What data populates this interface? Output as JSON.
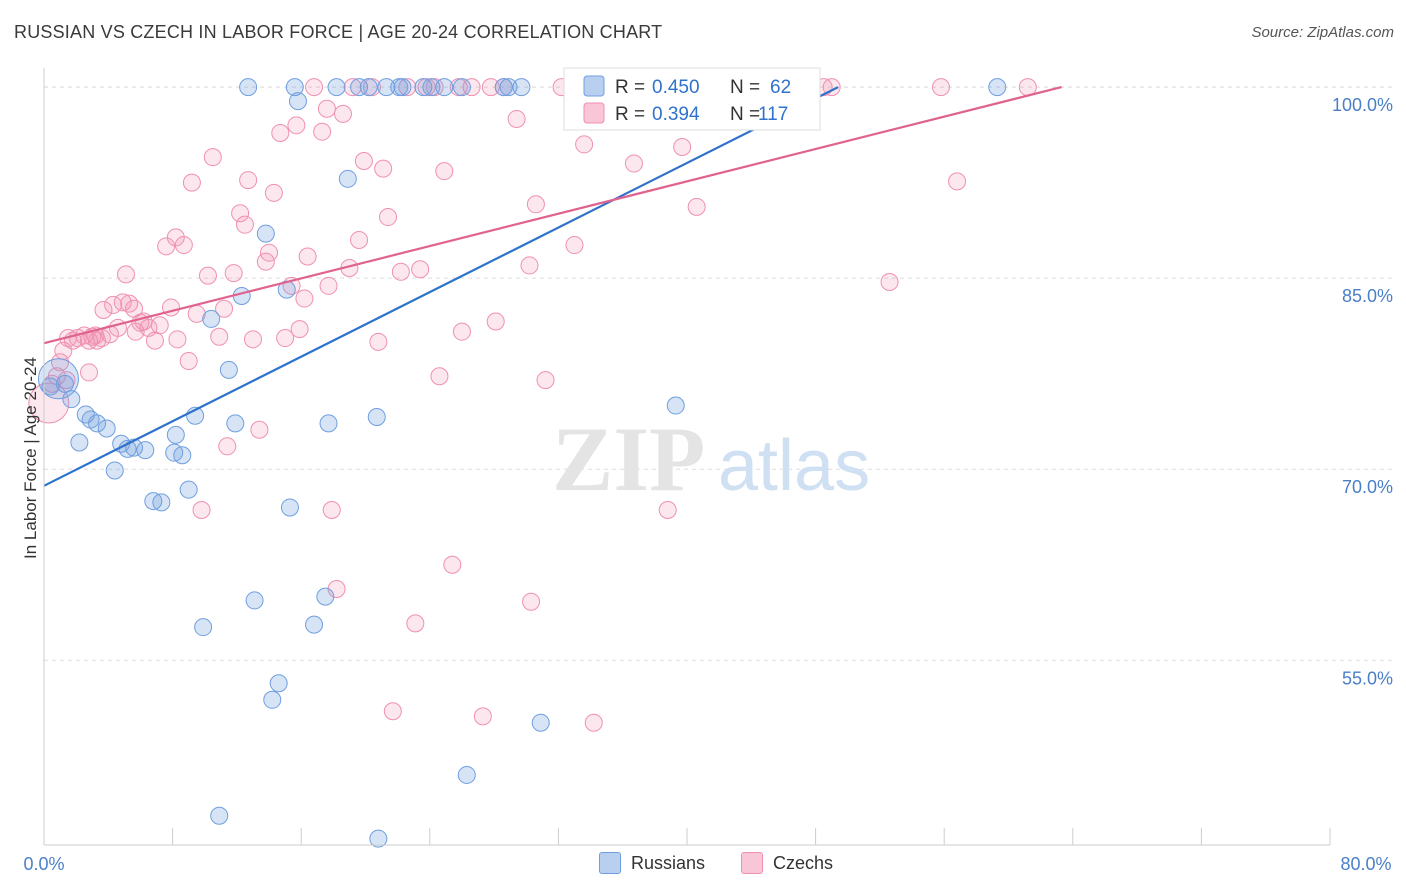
{
  "title": "RUSSIAN VS CZECH IN LABOR FORCE | AGE 20-24 CORRELATION CHART",
  "source": "Source: ZipAtlas.com",
  "watermark": {
    "zip": "ZIP",
    "atlas": "atlas"
  },
  "colors": {
    "russians": "#6f9fe0",
    "russians_line": "#2f72cc",
    "czechs": "#f090b0",
    "czechs_line": "#e0628f",
    "axis_label": "#4a7fc8",
    "grid": "#dddddd"
  },
  "legend_top": {
    "russians": {
      "r_label": "R =",
      "r_value": "0.450",
      "n_label": "N =",
      "n_value": "62"
    },
    "czechs": {
      "r_label": "R =",
      "r_value": "0.394",
      "n_label": "N =",
      "n_value": "117"
    }
  },
  "chart_data": {
    "type": "scatter",
    "title": "RUSSIAN VS CZECH IN LABOR FORCE | AGE 20-24 CORRELATION CHART",
    "xlabel": "",
    "ylabel": "In Labor Force | Age 20-24",
    "xlim": [
      0,
      80
    ],
    "ylim": [
      40.5,
      101.5
    ],
    "x_tick_labels": [
      "0.0%",
      "80.0%"
    ],
    "y_ticks": [
      55,
      70,
      85,
      100
    ],
    "y_tick_labels": [
      "55.0%",
      "70.0%",
      "85.0%",
      "100.0%"
    ],
    "grid": true,
    "legend": [
      "Russians",
      "Czechs"
    ],
    "series": [
      {
        "name": "Russians",
        "r": 0.45,
        "n": 62,
        "trend": [
          [
            0,
            68.7
          ],
          [
            49.4,
            100.0
          ]
        ],
        "points": [
          [
            0.4,
            76.5
          ],
          [
            1.3,
            76.7
          ],
          [
            1.7,
            75.5
          ],
          [
            2.2,
            72.1
          ],
          [
            2.6,
            74.3
          ],
          [
            2.9,
            73.9
          ],
          [
            3.3,
            73.6
          ],
          [
            3.9,
            73.2
          ],
          [
            4.4,
            69.9
          ],
          [
            4.8,
            72.0
          ],
          [
            5.2,
            71.6
          ],
          [
            5.6,
            71.7
          ],
          [
            6.3,
            71.5
          ],
          [
            6.8,
            67.5
          ],
          [
            7.3,
            67.4
          ],
          [
            8.1,
            71.3
          ],
          [
            8.2,
            72.7
          ],
          [
            8.6,
            71.1
          ],
          [
            9.0,
            68.4
          ],
          [
            9.4,
            74.2
          ],
          [
            9.9,
            57.6
          ],
          [
            10.4,
            81.8
          ],
          [
            10.9,
            42.8
          ],
          [
            11.5,
            77.8
          ],
          [
            11.9,
            73.6
          ],
          [
            12.3,
            83.6
          ],
          [
            12.7,
            100.0
          ],
          [
            13.1,
            59.7
          ],
          [
            13.8,
            88.5
          ],
          [
            14.2,
            51.9
          ],
          [
            14.6,
            53.2
          ],
          [
            15.1,
            84.1
          ],
          [
            15.3,
            67.0
          ],
          [
            15.6,
            100.0
          ],
          [
            15.8,
            98.9
          ],
          [
            16.8,
            57.8
          ],
          [
            17.5,
            60.0
          ],
          [
            17.7,
            73.6
          ],
          [
            18.2,
            100.0
          ],
          [
            18.9,
            92.8
          ],
          [
            19.6,
            100.0
          ],
          [
            20.2,
            100.0
          ],
          [
            20.7,
            74.1
          ],
          [
            20.8,
            41.0
          ],
          [
            21.3,
            100.0
          ],
          [
            22.1,
            100.0
          ],
          [
            22.3,
            100.0
          ],
          [
            23.6,
            100.0
          ],
          [
            24.1,
            100.0
          ],
          [
            24.9,
            100.0
          ],
          [
            26.0,
            100.0
          ],
          [
            26.3,
            46.0
          ],
          [
            28.6,
            100.0
          ],
          [
            28.9,
            100.0
          ],
          [
            29.7,
            100.0
          ],
          [
            30.9,
            50.1
          ],
          [
            33.2,
            100.0
          ],
          [
            36.6,
            100.0
          ],
          [
            39.3,
            75.0
          ],
          [
            42.1,
            100.0
          ],
          [
            44.9,
            100.0
          ],
          [
            59.3,
            100.0
          ]
        ],
        "big_point": [
          0.9,
          77.1
        ]
      },
      {
        "name": "Czechs",
        "r": 0.394,
        "n": 117,
        "trend": [
          [
            0,
            79.9
          ],
          [
            63.3,
            100.0
          ]
        ],
        "points": [
          [
            0.5,
            76.7
          ],
          [
            0.8,
            77.3
          ],
          [
            1.0,
            78.4
          ],
          [
            1.2,
            79.3
          ],
          [
            1.4,
            77.0
          ],
          [
            1.5,
            80.3
          ],
          [
            1.8,
            80.1
          ],
          [
            2.1,
            80.3
          ],
          [
            2.5,
            80.5
          ],
          [
            2.8,
            80.1
          ],
          [
            2.8,
            77.6
          ],
          [
            3.0,
            80.4
          ],
          [
            3.2,
            80.5
          ],
          [
            3.3,
            80.1
          ],
          [
            3.6,
            80.3
          ],
          [
            3.7,
            82.5
          ],
          [
            4.1,
            80.6
          ],
          [
            4.3,
            82.9
          ],
          [
            4.6,
            81.1
          ],
          [
            4.9,
            83.1
          ],
          [
            5.1,
            85.3
          ],
          [
            5.3,
            83.0
          ],
          [
            5.6,
            82.6
          ],
          [
            5.7,
            80.8
          ],
          [
            6.0,
            81.5
          ],
          [
            6.2,
            81.6
          ],
          [
            6.5,
            81.1
          ],
          [
            6.9,
            80.1
          ],
          [
            7.2,
            81.3
          ],
          [
            7.6,
            87.5
          ],
          [
            7.9,
            82.7
          ],
          [
            8.2,
            88.2
          ],
          [
            8.3,
            80.2
          ],
          [
            8.7,
            87.6
          ],
          [
            9.0,
            78.5
          ],
          [
            9.2,
            92.5
          ],
          [
            9.5,
            82.2
          ],
          [
            9.8,
            66.8
          ],
          [
            10.2,
            85.2
          ],
          [
            10.5,
            94.5
          ],
          [
            10.9,
            80.4
          ],
          [
            11.2,
            82.6
          ],
          [
            11.4,
            71.8
          ],
          [
            11.8,
            85.4
          ],
          [
            12.2,
            90.1
          ],
          [
            12.5,
            89.2
          ],
          [
            12.7,
            92.7
          ],
          [
            13.0,
            80.2
          ],
          [
            13.4,
            73.1
          ],
          [
            13.8,
            86.3
          ],
          [
            14.0,
            87.0
          ],
          [
            14.3,
            91.7
          ],
          [
            14.7,
            96.4
          ],
          [
            15.0,
            80.3
          ],
          [
            15.4,
            84.4
          ],
          [
            15.7,
            97.0
          ],
          [
            15.9,
            81.0
          ],
          [
            16.2,
            83.4
          ],
          [
            16.4,
            86.7
          ],
          [
            16.8,
            100.0
          ],
          [
            17.3,
            96.5
          ],
          [
            17.6,
            98.3
          ],
          [
            17.7,
            84.4
          ],
          [
            17.9,
            66.8
          ],
          [
            18.2,
            60.6
          ],
          [
            18.6,
            97.9
          ],
          [
            19.0,
            85.8
          ],
          [
            19.2,
            100.0
          ],
          [
            19.6,
            88.0
          ],
          [
            19.9,
            94.2
          ],
          [
            20.4,
            100.0
          ],
          [
            20.8,
            80.0
          ],
          [
            21.1,
            93.6
          ],
          [
            21.4,
            89.8
          ],
          [
            21.7,
            51.0
          ],
          [
            22.2,
            85.5
          ],
          [
            22.6,
            100.0
          ],
          [
            23.1,
            57.9
          ],
          [
            23.4,
            85.7
          ],
          [
            23.8,
            100.0
          ],
          [
            24.3,
            100.0
          ],
          [
            24.6,
            77.3
          ],
          [
            24.9,
            93.4
          ],
          [
            25.4,
            62.5
          ],
          [
            25.8,
            100.0
          ],
          [
            26.0,
            80.8
          ],
          [
            26.6,
            100.0
          ],
          [
            27.3,
            50.6
          ],
          [
            27.8,
            100.0
          ],
          [
            28.1,
            81.6
          ],
          [
            28.6,
            100.0
          ],
          [
            29.4,
            97.5
          ],
          [
            30.2,
            86.0
          ],
          [
            30.3,
            59.6
          ],
          [
            30.6,
            90.8
          ],
          [
            31.2,
            77.0
          ],
          [
            32.2,
            100.0
          ],
          [
            33.0,
            87.6
          ],
          [
            33.6,
            95.5
          ],
          [
            34.2,
            50.1
          ],
          [
            34.8,
            100.0
          ],
          [
            35.6,
            100.0
          ],
          [
            36.7,
            94.0
          ],
          [
            37.6,
            100.0
          ],
          [
            38.1,
            100.0
          ],
          [
            38.8,
            66.8
          ],
          [
            39.7,
            95.3
          ],
          [
            40.6,
            90.6
          ],
          [
            42.1,
            100.0
          ],
          [
            43.9,
            100.0
          ],
          [
            45.0,
            100.0
          ],
          [
            46.8,
            100.0
          ],
          [
            48.5,
            100.0
          ],
          [
            49.0,
            100.0
          ],
          [
            52.6,
            84.7
          ],
          [
            55.8,
            100.0
          ],
          [
            56.8,
            92.6
          ],
          [
            61.2,
            100.0
          ]
        ],
        "big_point": [
          0.3,
          75.2
        ]
      }
    ]
  },
  "axis": {
    "y_title": "In Labor Force | Age 20-24",
    "x_min_label": "0.0%",
    "x_max_label": "80.0%"
  },
  "legend_bottom": {
    "russians": "Russians",
    "czechs": "Czechs"
  }
}
